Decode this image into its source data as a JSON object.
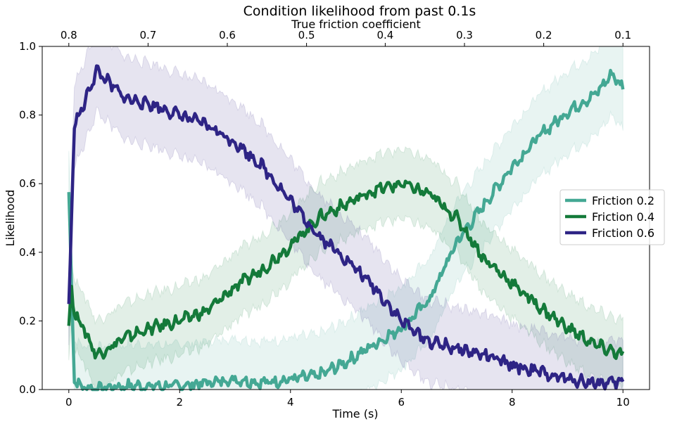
{
  "chart_data": {
    "type": "line",
    "title": "Condition likelihood from past 0.1s",
    "xlabel": "Time (s)",
    "ylabel": "Likelihood",
    "top_xlabel": "True friction coefficient",
    "xlim": [
      -0.48,
      10.48
    ],
    "ylim": [
      0.0,
      1.0
    ],
    "x_ticks": [
      0,
      2,
      4,
      6,
      8,
      10
    ],
    "x_tick_labels": [
      "0",
      "2",
      "4",
      "6",
      "8",
      "10"
    ],
    "y_ticks": [
      0.0,
      0.2,
      0.4,
      0.6,
      0.8,
      1.0
    ],
    "y_tick_labels": [
      "0.0",
      "0.2",
      "0.4",
      "0.6",
      "0.8",
      "1.0"
    ],
    "top_ticks": [
      0,
      1.43,
      2.86,
      4.29,
      5.71,
      7.14,
      8.57,
      10
    ],
    "top_tick_labels": [
      "0.8",
      "0.7",
      "0.6",
      "0.5",
      "0.4",
      "0.3",
      "0.2",
      "0.1"
    ],
    "grid": false,
    "legend_position": "center-right",
    "series": [
      {
        "name": "Friction 0.2",
        "color": "#44a894",
        "band": 0.12,
        "x": [
          0,
          0.05,
          0.1,
          0.2,
          0.5,
          1,
          1.5,
          2,
          2.5,
          3,
          3.5,
          4,
          4.5,
          5,
          5.5,
          6,
          6.5,
          7,
          7.5,
          8,
          8.5,
          9,
          9.5,
          9.8,
          10
        ],
        "y": [
          0.57,
          0.3,
          0.03,
          0.01,
          0.0,
          0.01,
          0.01,
          0.01,
          0.02,
          0.03,
          0.02,
          0.03,
          0.04,
          0.08,
          0.13,
          0.18,
          0.26,
          0.43,
          0.54,
          0.65,
          0.74,
          0.81,
          0.86,
          0.92,
          0.88
        ]
      },
      {
        "name": "Friction 0.4",
        "color": "#147a3a",
        "band": 0.1,
        "x": [
          0,
          0.05,
          0.1,
          0.2,
          0.5,
          1,
          1.5,
          2,
          2.5,
          3,
          3.5,
          4,
          4.5,
          5,
          5.5,
          6,
          6.5,
          7,
          7.5,
          8,
          8.5,
          9,
          9.5,
          10
        ],
        "y": [
          0.19,
          0.3,
          0.22,
          0.2,
          0.1,
          0.15,
          0.18,
          0.2,
          0.23,
          0.3,
          0.35,
          0.42,
          0.5,
          0.54,
          0.58,
          0.6,
          0.57,
          0.5,
          0.38,
          0.31,
          0.24,
          0.18,
          0.13,
          0.1
        ]
      },
      {
        "name": "Friction 0.6",
        "color": "#2e2485",
        "band": 0.12,
        "x": [
          0,
          0.05,
          0.1,
          0.2,
          0.5,
          1,
          1.5,
          2,
          2.5,
          3,
          3.5,
          4,
          4.5,
          5,
          5.5,
          6,
          6.5,
          7,
          7.5,
          8,
          8.5,
          9,
          9.5,
          10
        ],
        "y": [
          0.24,
          0.5,
          0.78,
          0.8,
          0.93,
          0.85,
          0.83,
          0.8,
          0.77,
          0.72,
          0.65,
          0.55,
          0.45,
          0.38,
          0.3,
          0.2,
          0.14,
          0.12,
          0.1,
          0.07,
          0.05,
          0.03,
          0.02,
          0.02
        ]
      }
    ]
  }
}
